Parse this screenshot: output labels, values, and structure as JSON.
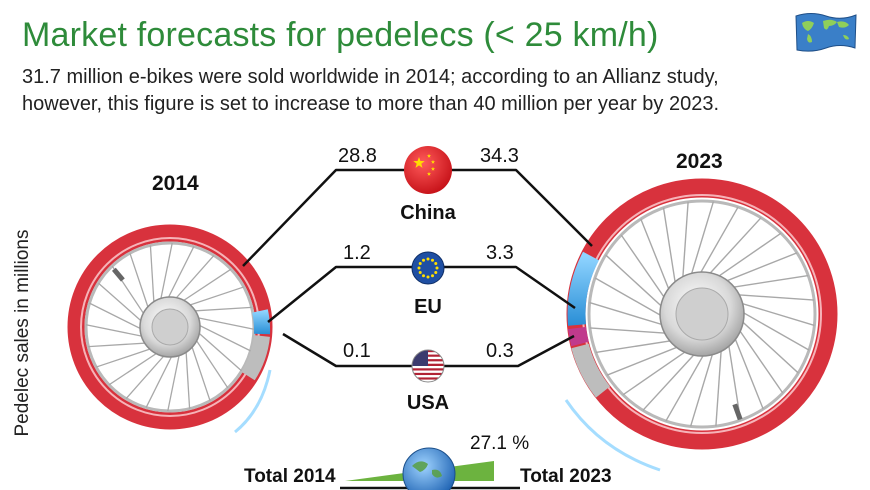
{
  "title": "Market forecasts for pedelecs (< 25 km/h)",
  "subtitle": "31.7 million e-bikes were sold worldwide in 2014; according to an Allianz study, however, this figure is set to increase to more than 40 million per year by 2023.",
  "ylabel": "Pedelec sales in millions",
  "icon": "world-map-flag-icon",
  "chart_data": {
    "type": "other",
    "years": [
      "2014",
      "2023"
    ],
    "series": [
      {
        "name": "China",
        "flag": "china-flag-icon",
        "values": [
          28.8,
          34.3
        ],
        "labels": [
          "28.8",
          "34.3"
        ]
      },
      {
        "name": "EU",
        "flag": "eu-flag-icon",
        "values": [
          1.2,
          3.3
        ],
        "labels": [
          "1.2",
          "3.3"
        ]
      },
      {
        "name": "USA",
        "flag": "usa-flag-icon",
        "values": [
          0.1,
          0.3
        ],
        "labels": [
          "0.1",
          "0.3"
        ]
      }
    ],
    "totals": {
      "label_2014": "Total 2014",
      "label_2023": "Total 2023",
      "growth": "27.1 %"
    }
  },
  "colors": {
    "title": "#2e8b3a",
    "tyre": "#d8323d",
    "china": "#ed1c24",
    "eu": "#1f4fa3",
    "usa": "#b22234",
    "segment": "#3ea9e6",
    "growth": "#6cb33f"
  }
}
